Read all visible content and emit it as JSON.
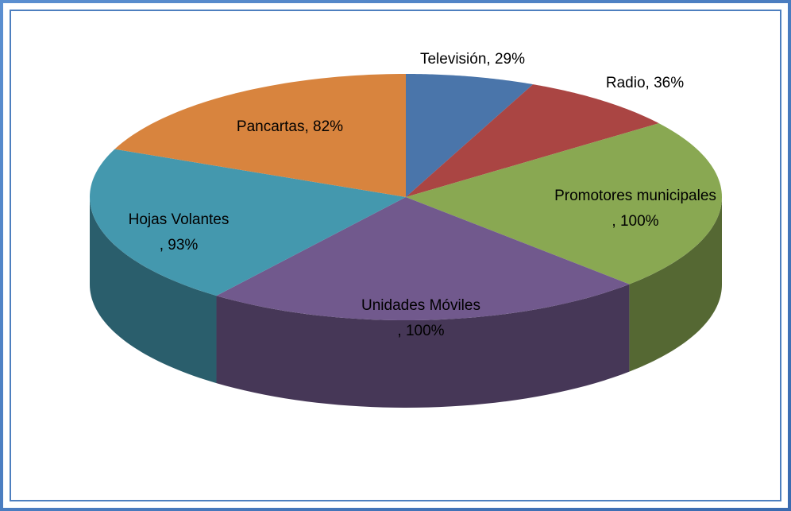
{
  "chart_data": {
    "type": "pie3d",
    "categories": [
      "Televisión",
      "Radio",
      "Promotores municipales",
      "Unidades Móviles",
      "Hojas Volantes",
      "Pancartas"
    ],
    "values": [
      29,
      36,
      100,
      100,
      93,
      82
    ],
    "value_labels": [
      ", 29%",
      ", 36%",
      ", 100%",
      ", 100%",
      ", 93%",
      ", 82%"
    ],
    "colors": [
      "#4a75aa",
      "#aa4543",
      "#89a852",
      "#71598d",
      "#4498ae",
      "#d8843e"
    ]
  }
}
